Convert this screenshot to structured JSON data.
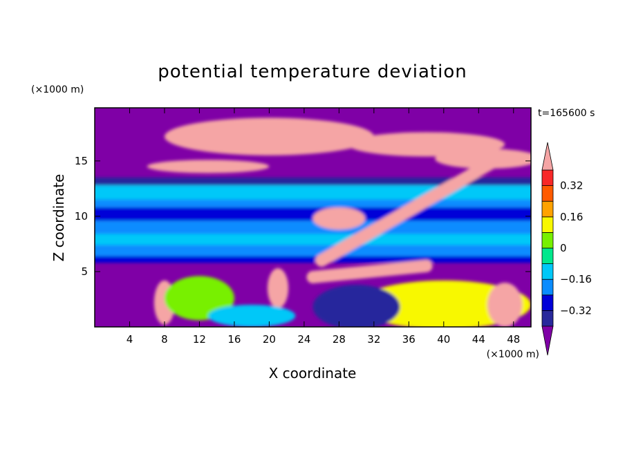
{
  "chart_data": {
    "type": "heatmap",
    "title": "potential temperature deviation",
    "time_label": "t=165600 s",
    "xlabel": "X coordinate",
    "ylabel": "Z coordinate",
    "x_units": "(×1000 m)",
    "y_units": "(×1000 m)",
    "xlim": [
      0,
      50
    ],
    "ylim": [
      0,
      19.8
    ],
    "x_ticks": [
      4,
      8,
      12,
      16,
      20,
      24,
      28,
      32,
      36,
      40,
      44,
      48
    ],
    "y_ticks": [
      5,
      10,
      15
    ],
    "colorbar": {
      "levels": [
        -0.4,
        -0.32,
        -0.24,
        -0.16,
        -0.08,
        0,
        0.08,
        0.16,
        0.24,
        0.32,
        0.4
      ],
      "labeled": [
        -0.32,
        -0.16,
        0,
        0.16,
        0.32
      ],
      "labels": [
        "0.32",
        "0.16",
        "0",
        "−0.16",
        "−0.32"
      ],
      "colors": [
        "#7f00a6",
        "#28289c",
        "#0000d8",
        "#0a8cff",
        "#00c8f8",
        "#00e88c",
        "#78f000",
        "#f8f800",
        "#ffa200",
        "#ff5a00",
        "#f82828",
        "#f5a5a5"
      ],
      "extend": "both"
    },
    "features": [
      {
        "shape": "band",
        "z": [
          12.8,
          13.5
        ],
        "level": -0.36
      },
      {
        "shape": "band",
        "z": [
          11.5,
          12.8
        ],
        "level": -0.12
      },
      {
        "shape": "band",
        "z": [
          10.8,
          11.5
        ],
        "level": -0.2
      },
      {
        "shape": "band",
        "z": [
          9.6,
          10.8
        ],
        "level": -0.28
      },
      {
        "shape": "band",
        "z": [
          8.4,
          9.6
        ],
        "level": -0.2
      },
      {
        "shape": "band",
        "z": [
          7.4,
          8.4
        ],
        "level": -0.12
      },
      {
        "shape": "band",
        "z": [
          6.4,
          7.4
        ],
        "level": -0.2
      },
      {
        "shape": "band",
        "z": [
          5.8,
          6.4
        ],
        "level": -0.28
      },
      {
        "shape": "blob",
        "x": 20,
        "z": 17.2,
        "rx": 12,
        "rz": 1.7,
        "level": 0.45
      },
      {
        "shape": "blob",
        "x": 38,
        "z": 16.5,
        "rx": 9,
        "rz": 1.1,
        "level": 0.45
      },
      {
        "shape": "blob",
        "x": 13,
        "z": 14.5,
        "rx": 7,
        "rz": 0.6,
        "level": 0.45
      },
      {
        "shape": "blob",
        "x": 45,
        "z": 15.2,
        "rx": 6,
        "rz": 0.9,
        "level": 0.45
      },
      {
        "shape": "streak",
        "x1": 26,
        "z1": 6,
        "x2": 47,
        "z2": 15.5,
        "level": 0.45
      },
      {
        "shape": "streak",
        "x1": 25,
        "z1": 4.5,
        "x2": 38,
        "z2": 5.5,
        "level": 0.45
      },
      {
        "shape": "blob",
        "x": 28,
        "z": 9.8,
        "rx": 3,
        "rz": 1,
        "level": 0.45
      },
      {
        "shape": "blob",
        "x": 8,
        "z": 2.2,
        "rx": 1.2,
        "rz": 2,
        "level": 0.45
      },
      {
        "shape": "blob",
        "x": 21,
        "z": 3.5,
        "rx": 1.2,
        "rz": 1.8,
        "level": 0.45
      },
      {
        "shape": "blob",
        "x": 40,
        "z": 2,
        "rx": 10,
        "rz": 2.2,
        "level": 0.12
      },
      {
        "shape": "blob",
        "x": 12,
        "z": 2.6,
        "rx": 4,
        "rz": 2,
        "level": 0.04
      },
      {
        "shape": "blob",
        "x": 47,
        "z": 2,
        "rx": 2,
        "rz": 2,
        "level": 0.45
      },
      {
        "shape": "blob",
        "x": 18,
        "z": 1,
        "rx": 5,
        "rz": 1,
        "level": -0.12
      },
      {
        "shape": "blob",
        "x": 30,
        "z": 1.8,
        "rx": 5,
        "rz": 2,
        "level": -0.4
      }
    ]
  }
}
